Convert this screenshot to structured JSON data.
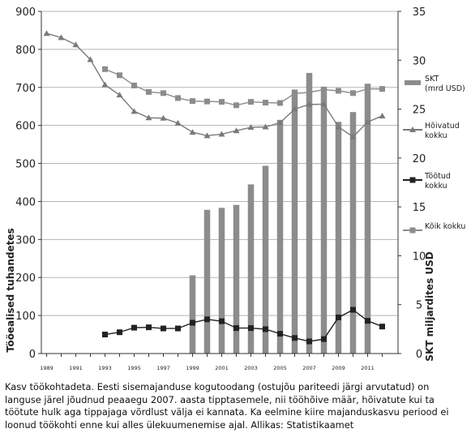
{
  "chart_data": {
    "type": "bar+line",
    "x": [
      1989,
      1990,
      1991,
      1992,
      1993,
      1994,
      1995,
      1996,
      1997,
      1998,
      1999,
      2000,
      2001,
      2002,
      2003,
      2004,
      2005,
      2006,
      2007,
      2008,
      2009,
      2010,
      2011,
      2012
    ],
    "x_tick_labels": [
      "1989",
      "1991",
      "1993",
      "1995",
      "1997",
      "1999",
      "2001",
      "2003",
      "2005",
      "2007",
      "2009",
      "2011"
    ],
    "left_axis": {
      "label": "Tööealised tuhandetes",
      "ylim": [
        0,
        900
      ],
      "ticks": [
        "0",
        "100",
        "200",
        "300",
        "400",
        "500",
        "600",
        "700",
        "800",
        "900"
      ]
    },
    "right_axis": {
      "label": "SKT miljardites USD",
      "ylim": [
        0,
        35
      ],
      "ticks": [
        "0",
        "5",
        "10",
        "15",
        "20",
        "25",
        "30",
        "35"
      ]
    },
    "series": [
      {
        "name": "SKT (mrd USD)",
        "kind": "bar",
        "axis": "right",
        "color": "#8c8c8c",
        "values": [
          null,
          null,
          null,
          null,
          null,
          null,
          null,
          null,
          null,
          null,
          8.0,
          14.7,
          14.9,
          15.2,
          17.3,
          19.2,
          23.9,
          27.0,
          28.7,
          27.3,
          23.7,
          24.7,
          27.6,
          null
        ]
      },
      {
        "name": "Hõivatud kokku",
        "kind": "line",
        "axis": "left",
        "marker": "triangle",
        "color": "#7a7a7a",
        "values": [
          842,
          831,
          812,
          773,
          707,
          680,
          637,
          620,
          619,
          606,
          582,
          573,
          577,
          586,
          595,
          596,
          607,
          643,
          655,
          656,
          596,
          570,
          609,
          625
        ]
      },
      {
        "name": "Töötud kokku",
        "kind": "line",
        "axis": "left",
        "marker": "square",
        "color": "#222222",
        "values": [
          null,
          null,
          null,
          null,
          50,
          56,
          68,
          69,
          66,
          66,
          81,
          90,
          85,
          67,
          67,
          64,
          52,
          41,
          32,
          38,
          95,
          115,
          86,
          71
        ]
      },
      {
        "name": "Kõik kokku",
        "kind": "line",
        "axis": "left",
        "marker": "square",
        "color": "#8c8c8c",
        "values": [
          null,
          null,
          null,
          null,
          748,
          732,
          705,
          688,
          685,
          672,
          664,
          663,
          662,
          653,
          662,
          660,
          659,
          684,
          687,
          694,
          691,
          685,
          696,
          696
        ]
      }
    ]
  },
  "caption": "Kasv töökohtadeta. Eesti sisemajanduse kogutoodang (ostujõu pariteedi järgi arvutatud) on languse järel jõudnud peaaegu 2007. aasta tipptasemele, nii tööhõive määr, hõivatute kui ta töötute hulk aga tippajaga võrdlust välja ei kannata. Ka eelmine kiire majanduskasvu periood ei loonud töökohti enne kui alles ülekuumenemise ajal. Allikas: Statistikaamet"
}
